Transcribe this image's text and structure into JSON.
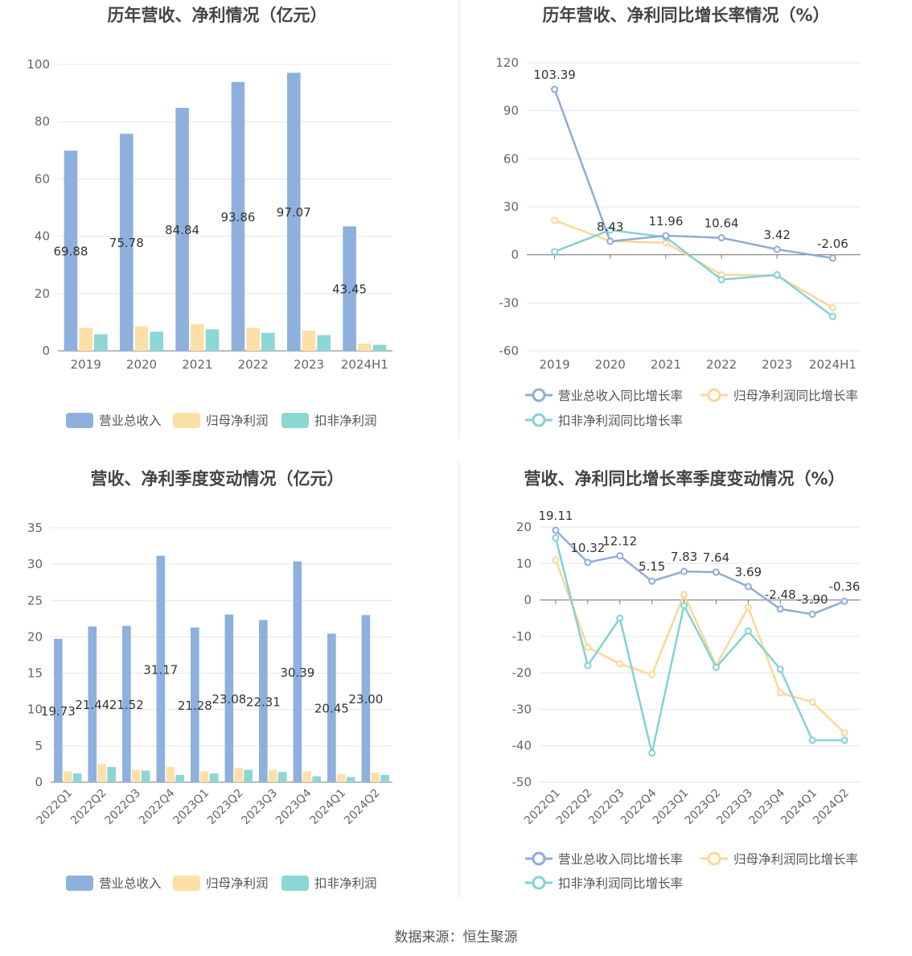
{
  "source": "数据来源：恒生聚源",
  "colors": {
    "revenue": "#8eb0dd",
    "net": "#fde0a8",
    "deduct": "#8dd6d6",
    "revenue_line": "#8eacd7",
    "net_line": "#fcd795",
    "deduct_line": "#83d2d4"
  },
  "chart_data": [
    {
      "type": "bar",
      "title": "历年营收、净利情况（亿元）",
      "categories": [
        "2019",
        "2020",
        "2021",
        "2022",
        "2023",
        "2024H1"
      ],
      "ylim": [
        0,
        100
      ],
      "yticks": [
        "0",
        "20",
        "40",
        "60",
        "80",
        "100"
      ],
      "grid": true,
      "legend_position": "bottom",
      "series": [
        {
          "name": "营业总收入",
          "values": [
            69.88,
            75.78,
            84.84,
            93.86,
            97.07,
            43.45
          ],
          "labels": [
            "69.88",
            "75.78",
            "84.84",
            "93.86",
            "97.07",
            "43.45"
          ]
        },
        {
          "name": "归母净利润",
          "values": [
            8.0,
            8.6,
            9.3,
            8.1,
            7.1,
            2.6
          ]
        },
        {
          "name": "扣非净利润",
          "values": [
            5.8,
            6.7,
            7.5,
            6.3,
            5.5,
            2.1
          ]
        }
      ]
    },
    {
      "type": "line",
      "title": "历年营收、净利同比增长率情况（%）",
      "categories": [
        "2019",
        "2020",
        "2021",
        "2022",
        "2023",
        "2024H1"
      ],
      "ylim": [
        -60,
        120
      ],
      "yticks": [
        "-60",
        "-30",
        "0",
        "30",
        "60",
        "90",
        "120"
      ],
      "grid": true,
      "legend_position": "bottom",
      "series": [
        {
          "name": "营业总收入同比增长率",
          "values": [
            103.39,
            8.43,
            11.96,
            10.64,
            3.42,
            -2.06
          ],
          "labels": [
            "103.39",
            "8.43",
            "11.96",
            "10.64",
            "3.42",
            "-2.06"
          ]
        },
        {
          "name": "归母净利润同比增长率",
          "values": [
            21.5,
            8.5,
            7.5,
            -12.5,
            -13.0,
            -33.0
          ]
        },
        {
          "name": "扣非净利润同比增长率",
          "values": [
            2.0,
            15.5,
            11.0,
            -15.5,
            -12.5,
            -38.5
          ]
        }
      ]
    },
    {
      "type": "bar",
      "title": "营收、净利季度变动情况（亿元）",
      "categories": [
        "2022Q1",
        "2022Q2",
        "2022Q3",
        "2022Q4",
        "2023Q1",
        "2023Q2",
        "2023Q3",
        "2023Q4",
        "2024Q1",
        "2024Q2"
      ],
      "ylim": [
        0,
        35
      ],
      "yticks": [
        "0",
        "5",
        "10",
        "15",
        "20",
        "25",
        "30",
        "35"
      ],
      "grid": true,
      "legend_position": "bottom",
      "series": [
        {
          "name": "营业总收入",
          "values": [
            19.73,
            21.44,
            21.52,
            31.17,
            21.28,
            23.08,
            22.31,
            30.39,
            20.45,
            23.0
          ],
          "labels": [
            "19.73",
            "21.44",
            "21.52",
            "31.17",
            "21.28",
            "23.08",
            "22.31",
            "30.39",
            "20.45",
            "23.00"
          ]
        },
        {
          "name": "归母净利润",
          "values": [
            1.5,
            2.5,
            1.7,
            2.1,
            1.5,
            2.0,
            1.7,
            1.5,
            1.1,
            1.3
          ]
        },
        {
          "name": "扣非净利润",
          "values": [
            1.2,
            2.1,
            1.6,
            1.0,
            1.2,
            1.7,
            1.4,
            0.8,
            0.7,
            1.0
          ]
        }
      ]
    },
    {
      "type": "line",
      "title": "营收、净利同比增长率季度变动情况（%）",
      "categories": [
        "2022Q1",
        "2022Q2",
        "2022Q3",
        "2022Q4",
        "2023Q1",
        "2023Q2",
        "2023Q3",
        "2023Q4",
        "2024Q1",
        "2024Q2"
      ],
      "ylim": [
        -50,
        20
      ],
      "yticks": [
        "-50",
        "-40",
        "-30",
        "-20",
        "-10",
        "0",
        "10",
        "20"
      ],
      "grid": true,
      "legend_position": "bottom",
      "series": [
        {
          "name": "营业总收入同比增长率",
          "values": [
            19.11,
            10.32,
            12.12,
            5.15,
            7.83,
            7.64,
            3.69,
            -2.48,
            -3.9,
            -0.36
          ],
          "labels": [
            "19.11",
            "10.32",
            "12.12",
            "5.15",
            "7.83",
            "7.64",
            "3.69",
            "-2.48",
            "-3.90",
            "-0.36"
          ]
        },
        {
          "name": "归母净利润同比增长率",
          "values": [
            11.0,
            -13.0,
            -17.5,
            -20.5,
            1.5,
            -18.0,
            -2.0,
            -25.5,
            -28.0,
            -36.5
          ]
        },
        {
          "name": "扣非净利润同比增长率",
          "values": [
            17.0,
            -18.0,
            -5.0,
            -42.0,
            -1.5,
            -18.5,
            -8.5,
            -19.0,
            -38.5,
            -38.5
          ]
        }
      ]
    }
  ]
}
